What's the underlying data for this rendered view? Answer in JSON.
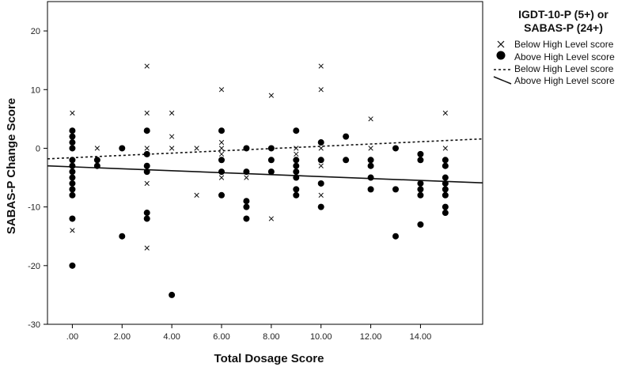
{
  "chart_data": {
    "type": "scatter",
    "xlabel": "Total Dosage Score",
    "ylabel": "SABAS-P Change Score",
    "xlim": [
      -1,
      16.5
    ],
    "ylim": [
      -30,
      25
    ],
    "x_ticks": [
      0,
      2,
      4,
      6,
      8,
      10,
      12,
      14
    ],
    "x_tick_labels": [
      ".00",
      "2.00",
      "4.00",
      "6.00",
      "8.00",
      "10.00",
      "12.00",
      "14.00"
    ],
    "y_ticks": [
      -30,
      -20,
      -10,
      0,
      10,
      20
    ],
    "y_tick_labels": [
      "-30",
      "-20",
      "-10",
      "0",
      "10",
      "20"
    ],
    "legend": {
      "title_lines": [
        "IGDT-10-P (5+) or",
        "SABAS-P (24+)"
      ],
      "position": "top-right",
      "entries": [
        {
          "label": "Below High Level score",
          "marker": "x"
        },
        {
          "label": "Above High Level score",
          "marker": "dot"
        },
        {
          "label": "Below High Level score",
          "marker": "dashed-line"
        },
        {
          "label": "Above High Level score",
          "marker": "solid-line"
        }
      ]
    },
    "series": [
      {
        "name": "Below High Level score",
        "marker": "x",
        "points": [
          [
            0,
            6
          ],
          [
            0,
            -14
          ],
          [
            0,
            -3
          ],
          [
            1,
            0
          ],
          [
            3,
            14
          ],
          [
            3,
            6
          ],
          [
            3,
            0
          ],
          [
            3,
            -1
          ],
          [
            3,
            -6
          ],
          [
            3,
            -17
          ],
          [
            4,
            6
          ],
          [
            4,
            2
          ],
          [
            4,
            0
          ],
          [
            5,
            0
          ],
          [
            5,
            -8
          ],
          [
            6,
            10
          ],
          [
            6,
            1
          ],
          [
            6,
            0
          ],
          [
            6,
            -1
          ],
          [
            6,
            -5
          ],
          [
            7,
            -5
          ],
          [
            8,
            9
          ],
          [
            8,
            -12
          ],
          [
            9,
            0
          ],
          [
            9,
            -1
          ],
          [
            10,
            14
          ],
          [
            10,
            10
          ],
          [
            10,
            0
          ],
          [
            10,
            -3
          ],
          [
            10,
            -8
          ],
          [
            12,
            5
          ],
          [
            12,
            0
          ],
          [
            15,
            6
          ],
          [
            15,
            0
          ]
        ]
      },
      {
        "name": "Above High Level score",
        "marker": "dot",
        "points": [
          [
            0,
            3
          ],
          [
            0,
            2
          ],
          [
            0,
            1
          ],
          [
            0,
            0
          ],
          [
            0,
            -2
          ],
          [
            0,
            -3
          ],
          [
            0,
            -4
          ],
          [
            0,
            -5
          ],
          [
            0,
            -6
          ],
          [
            0,
            -7
          ],
          [
            0,
            -8
          ],
          [
            0,
            -12
          ],
          [
            0,
            -20
          ],
          [
            1,
            -2
          ],
          [
            1,
            -3
          ],
          [
            2,
            0
          ],
          [
            2,
            -15
          ],
          [
            3,
            3
          ],
          [
            3,
            -1
          ],
          [
            3,
            -3
          ],
          [
            3,
            -4
          ],
          [
            3,
            -11
          ],
          [
            3,
            -12
          ],
          [
            4,
            -25
          ],
          [
            6,
            3
          ],
          [
            6,
            -2
          ],
          [
            6,
            -4
          ],
          [
            6,
            -8
          ],
          [
            7,
            0
          ],
          [
            7,
            -4
          ],
          [
            7,
            -9
          ],
          [
            7,
            -10
          ],
          [
            7,
            -12
          ],
          [
            8,
            0
          ],
          [
            8,
            -2
          ],
          [
            8,
            -4
          ],
          [
            9,
            3
          ],
          [
            9,
            -2
          ],
          [
            9,
            -3
          ],
          [
            9,
            -4
          ],
          [
            9,
            -5
          ],
          [
            9,
            -7
          ],
          [
            9,
            -8
          ],
          [
            10,
            1
          ],
          [
            10,
            -2
          ],
          [
            10,
            -6
          ],
          [
            10,
            -10
          ],
          [
            11,
            2
          ],
          [
            11,
            -2
          ],
          [
            12,
            -2
          ],
          [
            12,
            -3
          ],
          [
            12,
            -5
          ],
          [
            12,
            -7
          ],
          [
            13,
            0
          ],
          [
            13,
            -7
          ],
          [
            13,
            -15
          ],
          [
            14,
            -1
          ],
          [
            14,
            -2
          ],
          [
            14,
            -6
          ],
          [
            14,
            -7
          ],
          [
            14,
            -8
          ],
          [
            14,
            -13
          ],
          [
            15,
            -2
          ],
          [
            15,
            -3
          ],
          [
            15,
            -5
          ],
          [
            15,
            -6
          ],
          [
            15,
            -7
          ],
          [
            15,
            -8
          ],
          [
            15,
            -10
          ],
          [
            15,
            -11
          ]
        ]
      }
    ],
    "fit_lines": [
      {
        "name": "Below High Level score",
        "style": "dashed",
        "x": [
          -1,
          16.5
        ],
        "y": [
          -1.8,
          1.6
        ]
      },
      {
        "name": "Above High Level score",
        "style": "solid",
        "x": [
          -1,
          16.5
        ],
        "y": [
          -3.0,
          -5.9
        ]
      }
    ]
  }
}
